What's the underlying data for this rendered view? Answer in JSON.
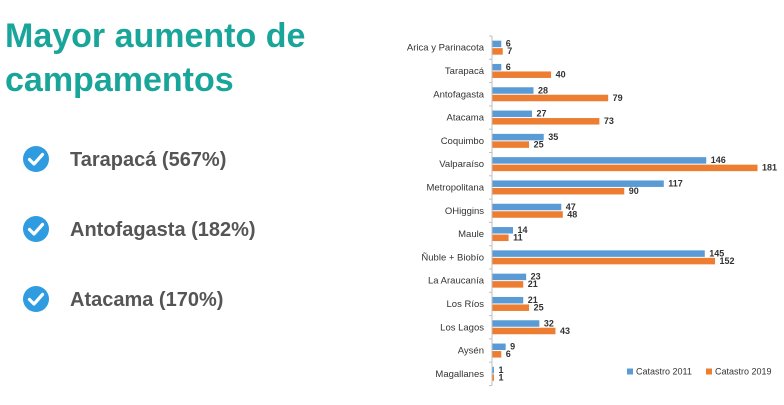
{
  "title": "Mayor aumento de campamentos",
  "bullets": [
    {
      "icon": "check-circle-icon",
      "text": "Tarapacá (567%)"
    },
    {
      "icon": "check-circle-icon",
      "text": "Antofagasta (182%)"
    },
    {
      "icon": "check-circle-icon",
      "text": "Atacama (170%)"
    }
  ],
  "colors": {
    "title": "#1aa59a",
    "check": "#2f9be0",
    "series_2011": "#5b9bd5",
    "series_2019": "#ed7d31"
  },
  "chart_data": {
    "type": "bar",
    "orientation": "horizontal",
    "title": "",
    "xlabel": "",
    "ylabel": "",
    "legend_position": "bottom-right",
    "grid": false,
    "xlim": [
      0,
      181
    ],
    "categories": [
      "Arica y Parinacota",
      "Tarapacá",
      "Antofagasta",
      "Atacama",
      "Coquimbo",
      "Valparaíso",
      "Metropolitana",
      "OHiggins",
      "Maule",
      "Ñuble + Biobío",
      "La Araucanía",
      "Los Ríos",
      "Los Lagos",
      "Aysén",
      "Magallanes"
    ],
    "series": [
      {
        "name": "Catastro 2011",
        "values": [
          6,
          6,
          28,
          27,
          35,
          146,
          117,
          47,
          14,
          145,
          23,
          21,
          32,
          9,
          1
        ]
      },
      {
        "name": "Catastro 2019",
        "values": [
          7,
          40,
          79,
          73,
          25,
          181,
          90,
          48,
          11,
          152,
          21,
          25,
          43,
          6,
          1
        ]
      }
    ]
  }
}
